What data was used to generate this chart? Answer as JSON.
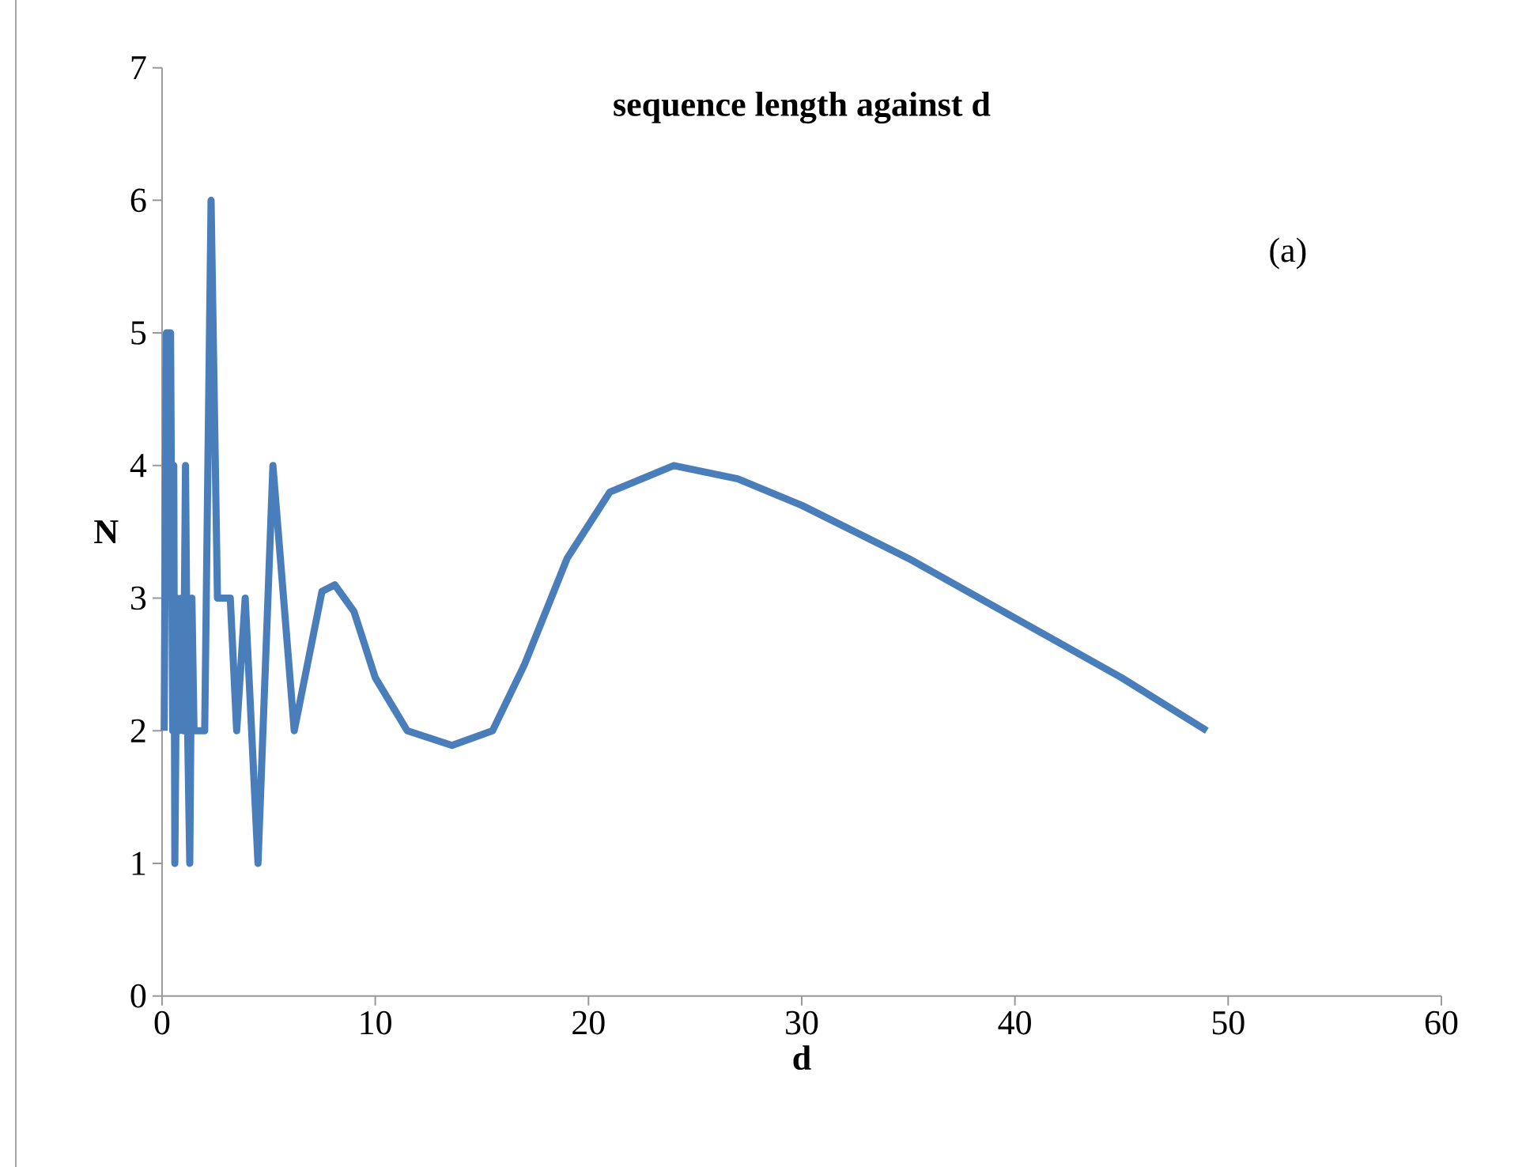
{
  "chart_data": {
    "type": "line",
    "title": "sequence length against d",
    "xlabel": "d",
    "ylabel": "N",
    "annotations": [
      "(a)"
    ],
    "x": [
      0.1,
      0.2,
      0.4,
      0.5,
      0.55,
      0.6,
      0.7,
      0.8,
      0.9,
      1.0,
      1.1,
      1.2,
      1.3,
      1.4,
      1.5,
      2.0,
      2.3,
      2.6,
      3.0,
      3.2,
      3.5,
      3.9,
      4.5,
      5.2,
      6.2,
      7.5,
      8.1,
      9.0,
      10,
      11.5,
      13.6,
      15.5,
      17,
      19,
      21,
      24,
      27,
      30,
      35,
      40,
      45,
      49
    ],
    "series": [
      {
        "color": "#4a7ebb",
        "values": [
          2,
          5,
          5,
          2,
          4,
          1,
          3,
          2,
          3,
          2,
          4,
          2,
          1,
          3,
          2,
          2,
          6,
          3,
          3,
          3,
          2,
          3,
          1,
          4,
          2,
          3.05,
          3.1,
          2.9,
          2.4,
          2.0,
          1.89,
          2.0,
          2.5,
          3.3,
          3.8,
          4.0,
          3.9,
          3.7,
          3.3,
          2.85,
          2.4,
          2.0
        ]
      }
    ],
    "xlim": [
      0,
      60
    ],
    "ylim": [
      0,
      7
    ],
    "xticks": [
      0,
      10,
      20,
      30,
      40,
      50,
      60
    ],
    "yticks": [
      0,
      1,
      2,
      3,
      4,
      5,
      6,
      7
    ],
    "grid": false,
    "marker": "none",
    "line_style": "solid"
  }
}
